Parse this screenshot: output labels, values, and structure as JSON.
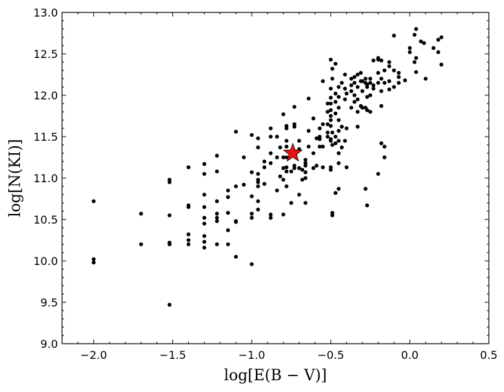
{
  "chart_data": {
    "type": "scatter",
    "title": "",
    "xlabel": "log[E(B − V)]",
    "ylabel": "log[N(KI)]",
    "xlim": [
      -2.2,
      0.5
    ],
    "ylim": [
      9.0,
      13.0
    ],
    "xticks": [
      "−2.0",
      "−1.5",
      "−1.0",
      "−0.5",
      "0.0",
      "0.5"
    ],
    "yticks": [
      "9.0",
      "9.5",
      "10.0",
      "10.5",
      "11.0",
      "11.5",
      "12.0",
      "12.5",
      "13.0"
    ],
    "grid": false,
    "colors": {
      "points": "#000000",
      "highlight_fill": "#ee1111",
      "highlight_edge": "#000000"
    },
    "series": [
      {
        "marker": "circle",
        "points": [
          [
            -2.0,
            10.72
          ],
          [
            -2.0,
            10.02
          ],
          [
            -2.0,
            9.98
          ],
          [
            -1.7,
            10.57
          ],
          [
            -1.7,
            10.2
          ],
          [
            -1.52,
            10.98
          ],
          [
            -1.52,
            10.95
          ],
          [
            -1.52,
            10.55
          ],
          [
            -1.52,
            10.22
          ],
          [
            -1.52,
            10.2
          ],
          [
            -1.52,
            9.47
          ],
          [
            -1.4,
            11.13
          ],
          [
            -1.4,
            10.67
          ],
          [
            -1.4,
            10.65
          ],
          [
            -1.4,
            10.32
          ],
          [
            -1.4,
            10.25
          ],
          [
            -1.4,
            10.2
          ],
          [
            -1.3,
            11.17
          ],
          [
            -1.3,
            11.05
          ],
          [
            -1.3,
            10.8
          ],
          [
            -1.3,
            10.65
          ],
          [
            -1.3,
            10.52
          ],
          [
            -1.3,
            10.45
          ],
          [
            -1.3,
            10.3
          ],
          [
            -1.3,
            10.23
          ],
          [
            -1.3,
            10.16
          ],
          [
            -1.22,
            11.27
          ],
          [
            -1.22,
            11.08
          ],
          [
            -1.22,
            10.72
          ],
          [
            -1.22,
            10.57
          ],
          [
            -1.22,
            10.52
          ],
          [
            -1.22,
            10.48
          ],
          [
            -1.22,
            10.2
          ],
          [
            -1.15,
            10.85
          ],
          [
            -1.15,
            10.77
          ],
          [
            -1.15,
            10.58
          ],
          [
            -1.15,
            10.37
          ],
          [
            -1.15,
            10.2
          ],
          [
            -1.1,
            11.56
          ],
          [
            -1.1,
            10.9
          ],
          [
            -1.1,
            10.48
          ],
          [
            -1.1,
            10.47
          ],
          [
            -1.1,
            10.05
          ],
          [
            -1.05,
            11.25
          ],
          [
            -1.05,
            10.92
          ],
          [
            -1.0,
            11.52
          ],
          [
            -1.0,
            11.07
          ],
          [
            -1.0,
            10.78
          ],
          [
            -1.0,
            10.57
          ],
          [
            -1.0,
            10.52
          ],
          [
            -1.0,
            9.96
          ],
          [
            -0.96,
            11.48
          ],
          [
            -0.96,
            11.37
          ],
          [
            -0.96,
            11.05
          ],
          [
            -0.96,
            10.98
          ],
          [
            -0.96,
            10.95
          ],
          [
            -0.96,
            10.9
          ],
          [
            -0.96,
            10.72
          ],
          [
            -0.96,
            10.62
          ],
          [
            -0.92,
            11.2
          ],
          [
            -0.92,
            11.13
          ],
          [
            -0.92,
            10.93
          ],
          [
            -0.88,
            11.6
          ],
          [
            -0.88,
            11.5
          ],
          [
            -0.88,
            11.3
          ],
          [
            -0.88,
            11.18
          ],
          [
            -0.88,
            10.56
          ],
          [
            -0.88,
            10.52
          ],
          [
            -0.84,
            11.5
          ],
          [
            -0.84,
            11.25
          ],
          [
            -0.84,
            10.85
          ],
          [
            -0.82,
            11.37
          ],
          [
            -0.82,
            11.02
          ],
          [
            -0.8,
            11.77
          ],
          [
            -0.8,
            11.25
          ],
          [
            -0.8,
            11.12
          ],
          [
            -0.8,
            10.98
          ],
          [
            -0.8,
            10.56
          ],
          [
            -0.78,
            11.63
          ],
          [
            -0.78,
            11.6
          ],
          [
            -0.78,
            11.45
          ],
          [
            -0.78,
            11.38
          ],
          [
            -0.78,
            11.25
          ],
          [
            -0.78,
            11.13
          ],
          [
            -0.78,
            11.08
          ],
          [
            -0.78,
            10.9
          ],
          [
            -0.75,
            11.08
          ],
          [
            -0.75,
            10.7
          ],
          [
            -0.73,
            11.86
          ],
          [
            -0.73,
            11.65
          ],
          [
            -0.73,
            11.62
          ],
          [
            -0.73,
            11.15
          ],
          [
            -0.73,
            11.12
          ],
          [
            -0.7,
            11.45
          ],
          [
            -0.7,
            11.35
          ],
          [
            -0.7,
            11.12
          ],
          [
            -0.7,
            10.8
          ],
          [
            -0.68,
            11.1
          ],
          [
            -0.68,
            10.98
          ],
          [
            -0.66,
            11.22
          ],
          [
            -0.66,
            11.18
          ],
          [
            -0.66,
            11.15
          ],
          [
            -0.66,
            11.07
          ],
          [
            -0.66,
            11.0
          ],
          [
            -0.66,
            10.7
          ],
          [
            -0.64,
            11.96
          ],
          [
            -0.64,
            11.57
          ],
          [
            -0.64,
            11.38
          ],
          [
            -0.61,
            11.72
          ],
          [
            -0.61,
            11.3
          ],
          [
            -0.61,
            11.12
          ],
          [
            -0.59,
            11.48
          ],
          [
            -0.59,
            11.15
          ],
          [
            -0.57,
            11.6
          ],
          [
            -0.57,
            11.5
          ],
          [
            -0.57,
            11.47
          ],
          [
            -0.57,
            11.38
          ],
          [
            -0.55,
            12.17
          ],
          [
            -0.55,
            11.65
          ],
          [
            -0.55,
            11.38
          ],
          [
            -0.55,
            11.13
          ],
          [
            -0.52,
            11.9
          ],
          [
            -0.52,
            11.8
          ],
          [
            -0.52,
            11.65
          ],
          [
            -0.52,
            11.55
          ],
          [
            -0.52,
            11.5
          ],
          [
            -0.5,
            12.43
          ],
          [
            -0.5,
            12.08
          ],
          [
            -0.5,
            11.97
          ],
          [
            -0.5,
            11.9
          ],
          [
            -0.5,
            11.82
          ],
          [
            -0.5,
            11.75
          ],
          [
            -0.5,
            11.7
          ],
          [
            -0.5,
            11.63
          ],
          [
            -0.5,
            11.47
          ],
          [
            -0.5,
            11.45
          ],
          [
            -0.5,
            11.13
          ],
          [
            -0.5,
            11.1
          ],
          [
            -0.49,
            12.32
          ],
          [
            -0.49,
            12.2
          ],
          [
            -0.49,
            11.55
          ],
          [
            -0.49,
            11.4
          ],
          [
            -0.49,
            10.58
          ],
          [
            -0.49,
            10.55
          ],
          [
            -0.47,
            12.38
          ],
          [
            -0.47,
            12.02
          ],
          [
            -0.47,
            11.92
          ],
          [
            -0.47,
            11.78
          ],
          [
            -0.47,
            11.5
          ],
          [
            -0.47,
            11.42
          ],
          [
            -0.47,
            10.82
          ],
          [
            -0.45,
            12.1
          ],
          [
            -0.45,
            11.98
          ],
          [
            -0.45,
            11.85
          ],
          [
            -0.45,
            11.7
          ],
          [
            -0.45,
            11.57
          ],
          [
            -0.45,
            11.45
          ],
          [
            -0.45,
            11.3
          ],
          [
            -0.45,
            11.18
          ],
          [
            -0.45,
            10.87
          ],
          [
            -0.43,
            12.15
          ],
          [
            -0.43,
            11.62
          ],
          [
            -0.43,
            11.37
          ],
          [
            -0.41,
            12.25
          ],
          [
            -0.41,
            12.08
          ],
          [
            -0.41,
            11.95
          ],
          [
            -0.41,
            11.45
          ],
          [
            -0.4,
            12.02
          ],
          [
            -0.4,
            11.6
          ],
          [
            -0.4,
            11.13
          ],
          [
            -0.37,
            12.2
          ],
          [
            -0.37,
            12.12
          ],
          [
            -0.37,
            12.05
          ],
          [
            -0.37,
            11.85
          ],
          [
            -0.35,
            12.22
          ],
          [
            -0.35,
            12.15
          ],
          [
            -0.35,
            12.0
          ],
          [
            -0.35,
            11.92
          ],
          [
            -0.33,
            12.25
          ],
          [
            -0.33,
            12.1
          ],
          [
            -0.33,
            11.95
          ],
          [
            -0.33,
            11.8
          ],
          [
            -0.33,
            11.62
          ],
          [
            -0.31,
            12.27
          ],
          [
            -0.31,
            12.17
          ],
          [
            -0.31,
            11.87
          ],
          [
            -0.3,
            12.17
          ],
          [
            -0.3,
            12.05
          ],
          [
            -0.3,
            11.85
          ],
          [
            -0.28,
            12.2
          ],
          [
            -0.28,
            12.15
          ],
          [
            -0.28,
            11.85
          ],
          [
            -0.28,
            10.87
          ],
          [
            -0.27,
            12.13
          ],
          [
            -0.27,
            12.1
          ],
          [
            -0.27,
            11.98
          ],
          [
            -0.27,
            11.82
          ],
          [
            -0.27,
            10.67
          ],
          [
            -0.25,
            12.2
          ],
          [
            -0.25,
            12.15
          ],
          [
            -0.25,
            12.0
          ],
          [
            -0.25,
            11.8
          ],
          [
            -0.23,
            12.42
          ],
          [
            -0.23,
            12.12
          ],
          [
            -0.23,
            12.08
          ],
          [
            -0.2,
            12.45
          ],
          [
            -0.2,
            12.43
          ],
          [
            -0.2,
            12.27
          ],
          [
            -0.2,
            12.15
          ],
          [
            -0.2,
            11.05
          ],
          [
            -0.18,
            12.42
          ],
          [
            -0.18,
            12.2
          ],
          [
            -0.18,
            12.05
          ],
          [
            -0.18,
            11.87
          ],
          [
            -0.18,
            11.42
          ],
          [
            -0.16,
            12.3
          ],
          [
            -0.16,
            12.15
          ],
          [
            -0.16,
            11.38
          ],
          [
            -0.16,
            11.25
          ],
          [
            -0.13,
            12.4
          ],
          [
            -0.13,
            12.35
          ],
          [
            -0.13,
            12.17
          ],
          [
            -0.13,
            12.07
          ],
          [
            -0.1,
            12.72
          ],
          [
            -0.1,
            12.3
          ],
          [
            -0.1,
            12.1
          ],
          [
            -0.07,
            12.27
          ],
          [
            -0.07,
            12.22
          ],
          [
            -0.07,
            12.15
          ],
          [
            -0.03,
            12.18
          ],
          [
            0.0,
            12.57
          ],
          [
            0.0,
            12.52
          ],
          [
            0.03,
            12.73
          ],
          [
            0.03,
            12.4
          ],
          [
            0.04,
            12.8
          ],
          [
            0.04,
            12.45
          ],
          [
            0.04,
            12.28
          ],
          [
            0.07,
            12.65
          ],
          [
            0.09,
            12.63
          ],
          [
            0.1,
            12.2
          ],
          [
            0.15,
            12.57
          ],
          [
            0.18,
            12.67
          ],
          [
            0.18,
            12.52
          ],
          [
            0.2,
            12.7
          ],
          [
            0.2,
            12.37
          ]
        ]
      },
      {
        "marker": "star",
        "points": [
          [
            -0.74,
            11.3
          ]
        ]
      }
    ]
  }
}
